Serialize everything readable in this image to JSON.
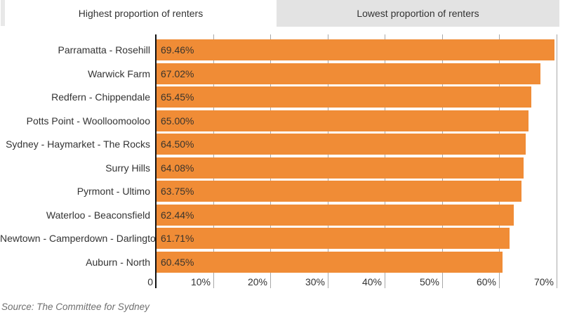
{
  "tabs": [
    {
      "label": "Highest proportion of renters",
      "active": true
    },
    {
      "label": "Lowest proportion of renters",
      "active": false
    }
  ],
  "chart_data": {
    "type": "bar",
    "orientation": "horizontal",
    "title": "",
    "xlabel": "",
    "ylabel": "",
    "categories": [
      "Parramatta - Rosehill",
      "Warwick Farm",
      "Redfern - Chippendale",
      "Potts Point - Woolloomooloo",
      "Sydney - Haymarket - The Rocks",
      "Surry Hills",
      "Pyrmont - Ultimo",
      "Waterloo - Beaconsfield",
      "Newtown - Camperdown - Darlington",
      "Auburn - North"
    ],
    "values": [
      69.46,
      67.02,
      65.45,
      65.0,
      64.5,
      64.08,
      63.75,
      62.44,
      61.71,
      60.45
    ],
    "value_labels": [
      "69.46%",
      "67.02%",
      "65.45%",
      "65.00%",
      "64.50%",
      "64.08%",
      "63.75%",
      "62.44%",
      "61.71%",
      "60.45%"
    ],
    "x_ticks": [
      {
        "value": 0,
        "label": "0"
      },
      {
        "value": 10,
        "label": "10%"
      },
      {
        "value": 20,
        "label": "20%"
      },
      {
        "value": 30,
        "label": "30%"
      },
      {
        "value": 40,
        "label": "40%"
      },
      {
        "value": 50,
        "label": "50%"
      },
      {
        "value": 60,
        "label": "60%"
      },
      {
        "value": 70,
        "label": "70%"
      }
    ],
    "xlim": [
      0,
      70
    ],
    "grid": true,
    "legend": false,
    "bar_color": "#f08c36",
    "axis_color": "#111111",
    "grid_color": "#a8a8a8"
  },
  "source": "Source: The Committee for Sydney"
}
